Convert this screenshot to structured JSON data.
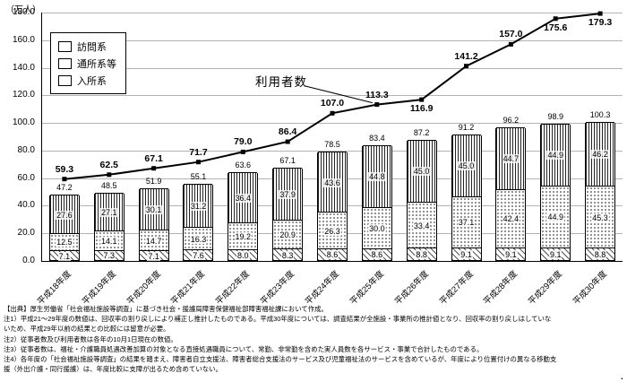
{
  "chart_data": {
    "type": "bar+line",
    "subtype": "stacked-bar-with-line",
    "unit_label": "（万人）",
    "categories": [
      "平成18年度",
      "平成19年度",
      "平成20年度",
      "平成21年度",
      "平成22年度",
      "平成23年度",
      "平成24年度",
      "平成25年度",
      "平成26年度",
      "平成27年度",
      "平成28年度",
      "平成29年度",
      "平成30年度"
    ],
    "stacked_series": [
      {
        "name": "訪問系",
        "pattern": "vertical",
        "values": [
          27.6,
          27.1,
          30.1,
          31.2,
          36.4,
          37.9,
          43.6,
          44.8,
          45.0,
          45.0,
          44.7,
          44.9,
          46.2
        ]
      },
      {
        "name": "通所系等",
        "pattern": "dots",
        "values": [
          12.5,
          14.1,
          14.7,
          16.3,
          19.2,
          20.9,
          26.3,
          30.0,
          33.4,
          37.1,
          42.4,
          44.9,
          45.3
        ]
      },
      {
        "name": "入所系",
        "pattern": "diagonal",
        "values": [
          7.1,
          7.3,
          7.1,
          7.6,
          8.0,
          8.3,
          8.6,
          8.6,
          8.8,
          9.1,
          9.1,
          9.1,
          8.8
        ]
      }
    ],
    "bar_totals": [
      47.2,
      48.5,
      51.9,
      55.1,
      63.6,
      67.1,
      78.5,
      83.4,
      87.2,
      91.2,
      96.2,
      98.9,
      100.3
    ],
    "line_series": {
      "name": "利用者数",
      "values": [
        59.3,
        62.5,
        67.1,
        71.7,
        79.0,
        86.4,
        107.0,
        113.3,
        116.9,
        141.2,
        157.0,
        175.6,
        179.3
      ]
    },
    "line_label_side": [
      "above",
      "above",
      "above",
      "above",
      "above",
      "above",
      "above",
      "above",
      "below",
      "above",
      "above",
      "below",
      "below"
    ],
    "ylim": [
      0,
      180
    ],
    "ytick": 20,
    "grid": true,
    "legend_position": "top-left-inside",
    "colors": {
      "line": "#000000",
      "bar_border": "#000000",
      "gridline": "#b4b4b4"
    }
  },
  "footnotes": [
    "【出典】厚生労働省「社会福祉施設等調査」に基づき社会・援護局障害保健福祉部障害福祉課において作成。",
    "注1）平成21～29年度の数値は、回収率の割り戻しにより補正し推計したものである。平成30年度については、調査結果が全施設・事業所の推計値となり、回収率の割り戻しはしていな",
    "いため、平成29年以前の結果との比較には留意が必要。",
    "注2）従事者数及び利用者数は各年の10月1日現在の数値。",
    "注3）従事者数は、福祉・介護職員処遇改善加算の対象となる直接処遇職員について、常勤、非常勤を含めた実人員数を各サービス・事業で合計したものである。",
    "注4）各年度の「社会福祉施設等調査」の結果を踏まえ、障害者自立支援法、障害者総合支援法のサービス及び児童福祉法のサービスを含めているが、年度により位置付けの異なる移動支",
    "援（外出介護・同行援護）は、年度比較に支障が出るため含めていない。",
    "・"
  ]
}
